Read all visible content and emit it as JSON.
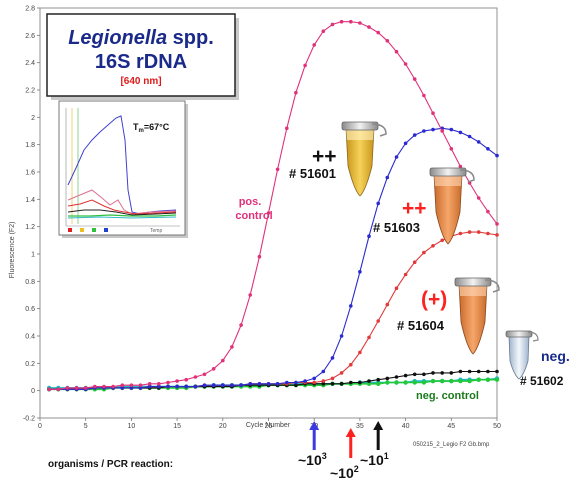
{
  "chart_data": {
    "type": "line",
    "xlabel": "Cycle Number",
    "ylabel": "Fluorescence (F2)",
    "xlim": [
      0,
      50
    ],
    "ylim": [
      -0.2,
      2.8
    ],
    "x_ticks": [
      0,
      5,
      10,
      15,
      20,
      25,
      30,
      35,
      40,
      45,
      50
    ],
    "y_ticks": [
      -0.2,
      0,
      0.2,
      0.4,
      0.6,
      0.8,
      1,
      1.2,
      1.4,
      1.6,
      1.8,
      2,
      2.2,
      2.4,
      2.6,
      2.8
    ],
    "x_tick_labels": [
      "0",
      "5",
      "10",
      "15",
      "20",
      "25",
      "30",
      "35",
      "40",
      "45",
      "50"
    ],
    "y_tick_labels": [
      "-0.2",
      "0",
      "0.2",
      "0.4",
      "0.6",
      "0.8",
      "1",
      "1.2",
      "1.4",
      "1.6",
      "1.8",
      "2",
      "2.2",
      "2.4",
      "2.6",
      "2.8"
    ],
    "grid": false,
    "series": [
      {
        "name": "pos. control",
        "color": "#e0317a",
        "x": [
          1,
          2,
          3,
          4,
          5,
          6,
          7,
          8,
          9,
          10,
          11,
          12,
          13,
          14,
          15,
          16,
          17,
          18,
          19,
          20,
          21,
          22,
          23,
          24,
          25,
          26,
          27,
          28,
          29,
          30,
          31,
          32,
          33,
          34,
          35,
          36,
          37,
          38,
          39,
          40,
          41,
          42,
          43,
          44,
          45,
          46,
          47,
          48,
          49,
          50
        ],
        "y": [
          0.01,
          0.01,
          0.02,
          0.02,
          0.02,
          0.03,
          0.03,
          0.03,
          0.04,
          0.04,
          0.04,
          0.05,
          0.05,
          0.06,
          0.07,
          0.08,
          0.1,
          0.12,
          0.16,
          0.22,
          0.32,
          0.48,
          0.7,
          0.98,
          1.3,
          1.62,
          1.92,
          2.18,
          2.38,
          2.53,
          2.63,
          2.68,
          2.7,
          2.7,
          2.69,
          2.66,
          2.62,
          2.56,
          2.48,
          2.39,
          2.28,
          2.16,
          2.03,
          1.9,
          1.77,
          1.64,
          1.52,
          1.41,
          1.31,
          1.22
        ]
      },
      {
        "name": "# 51601",
        "color": "#2a2ad0",
        "x": [
          1,
          2,
          3,
          4,
          5,
          6,
          7,
          8,
          9,
          10,
          11,
          12,
          13,
          14,
          15,
          16,
          17,
          18,
          19,
          20,
          21,
          22,
          23,
          24,
          25,
          26,
          27,
          28,
          29,
          30,
          31,
          32,
          33,
          34,
          35,
          36,
          37,
          38,
          39,
          40,
          41,
          42,
          43,
          44,
          45,
          46,
          47,
          48,
          49,
          50
        ],
        "y": [
          0.01,
          0.01,
          0.01,
          0.01,
          0.01,
          0.02,
          0.02,
          0.02,
          0.02,
          0.02,
          0.02,
          0.03,
          0.03,
          0.03,
          0.03,
          0.03,
          0.03,
          0.04,
          0.04,
          0.04,
          0.04,
          0.04,
          0.05,
          0.05,
          0.05,
          0.05,
          0.06,
          0.06,
          0.07,
          0.09,
          0.14,
          0.24,
          0.4,
          0.62,
          0.87,
          1.13,
          1.37,
          1.56,
          1.71,
          1.81,
          1.87,
          1.9,
          1.91,
          1.92,
          1.91,
          1.89,
          1.86,
          1.82,
          1.77,
          1.72
        ]
      },
      {
        "name": "# 51603",
        "color": "#e03a3a",
        "x": [
          1,
          2,
          3,
          4,
          5,
          6,
          7,
          8,
          9,
          10,
          11,
          12,
          13,
          14,
          15,
          16,
          17,
          18,
          19,
          20,
          21,
          22,
          23,
          24,
          25,
          26,
          27,
          28,
          29,
          30,
          31,
          32,
          33,
          34,
          35,
          36,
          37,
          38,
          39,
          40,
          41,
          42,
          43,
          44,
          45,
          46,
          47,
          48,
          49,
          50
        ],
        "y": [
          0.01,
          0.01,
          0.01,
          0.01,
          0.01,
          0.02,
          0.02,
          0.02,
          0.02,
          0.02,
          0.02,
          0.03,
          0.03,
          0.03,
          0.03,
          0.03,
          0.03,
          0.04,
          0.04,
          0.04,
          0.04,
          0.04,
          0.05,
          0.05,
          0.05,
          0.05,
          0.05,
          0.06,
          0.06,
          0.06,
          0.07,
          0.09,
          0.13,
          0.19,
          0.28,
          0.39,
          0.51,
          0.63,
          0.75,
          0.85,
          0.94,
          1.01,
          1.06,
          1.1,
          1.13,
          1.15,
          1.16,
          1.16,
          1.15,
          1.14
        ]
      },
      {
        "name": "# 51604",
        "color": "#111111",
        "x": [
          1,
          2,
          3,
          4,
          5,
          6,
          7,
          8,
          9,
          10,
          11,
          12,
          13,
          14,
          15,
          16,
          17,
          18,
          19,
          20,
          21,
          22,
          23,
          24,
          25,
          26,
          27,
          28,
          29,
          30,
          31,
          32,
          33,
          34,
          35,
          36,
          37,
          38,
          39,
          40,
          41,
          42,
          43,
          44,
          45,
          46,
          47,
          48,
          49,
          50
        ],
        "y": [
          0.01,
          0.01,
          0.01,
          0.01,
          0.01,
          0.02,
          0.02,
          0.02,
          0.02,
          0.02,
          0.02,
          0.02,
          0.02,
          0.03,
          0.03,
          0.03,
          0.03,
          0.03,
          0.03,
          0.03,
          0.03,
          0.04,
          0.04,
          0.04,
          0.04,
          0.04,
          0.04,
          0.04,
          0.05,
          0.05,
          0.05,
          0.05,
          0.05,
          0.06,
          0.06,
          0.07,
          0.08,
          0.09,
          0.1,
          0.11,
          0.12,
          0.12,
          0.13,
          0.13,
          0.13,
          0.14,
          0.14,
          0.14,
          0.14,
          0.14
        ]
      },
      {
        "name": "neg. control",
        "color": "#22c93a",
        "x": [
          1,
          2,
          3,
          4,
          5,
          6,
          7,
          8,
          9,
          10,
          11,
          12,
          13,
          14,
          15,
          16,
          17,
          18,
          19,
          20,
          21,
          22,
          23,
          24,
          25,
          26,
          27,
          28,
          29,
          30,
          31,
          32,
          33,
          34,
          35,
          36,
          37,
          38,
          39,
          40,
          41,
          42,
          43,
          44,
          45,
          46,
          47,
          48,
          49,
          50
        ],
        "y": [
          0.01,
          0.01,
          0.01,
          0.01,
          0.01,
          0.01,
          0.01,
          0.02,
          0.02,
          0.02,
          0.02,
          0.02,
          0.02,
          0.02,
          0.02,
          0.02,
          0.03,
          0.03,
          0.03,
          0.03,
          0.03,
          0.03,
          0.03,
          0.03,
          0.04,
          0.04,
          0.04,
          0.04,
          0.04,
          0.04,
          0.04,
          0.05,
          0.05,
          0.05,
          0.05,
          0.05,
          0.05,
          0.06,
          0.06,
          0.06,
          0.06,
          0.06,
          0.07,
          0.07,
          0.07,
          0.07,
          0.07,
          0.08,
          0.08,
          0.08
        ]
      },
      {
        "name": "neg. control (2)",
        "color": "#20b8c8",
        "x": [
          1,
          2,
          3,
          4,
          5,
          6,
          7,
          8,
          9,
          10,
          11,
          12,
          13,
          14,
          15,
          16,
          17,
          18,
          19,
          20,
          21,
          22,
          23,
          24,
          25,
          26,
          27,
          28,
          29,
          30,
          31,
          32,
          33,
          34,
          35,
          36,
          37,
          38,
          39,
          40,
          41,
          42,
          43,
          44,
          45,
          46,
          47,
          48,
          49,
          50
        ],
        "y": [
          0.02,
          0.02,
          0.02,
          0.02,
          0.02,
          0.02,
          0.02,
          0.02,
          0.03,
          0.03,
          0.03,
          0.03,
          0.03,
          0.03,
          0.03,
          0.03,
          0.03,
          0.03,
          0.04,
          0.04,
          0.04,
          0.04,
          0.04,
          0.04,
          0.04,
          0.04,
          0.04,
          0.05,
          0.05,
          0.05,
          0.05,
          0.05,
          0.05,
          0.05,
          0.06,
          0.06,
          0.06,
          0.06,
          0.06,
          0.06,
          0.07,
          0.07,
          0.07,
          0.07,
          0.07,
          0.08,
          0.08,
          0.08,
          0.08,
          0.09
        ]
      }
    ]
  },
  "title_box": {
    "genus": "Legionella",
    "spp": " spp.",
    "line2": "16S rDNA",
    "line3": "[640 nm]"
  },
  "inset": {
    "tm_label": "T",
    "tm_sub": "m",
    "tm_value": "=67°C",
    "x_label": "Temp"
  },
  "labels": {
    "pos_control": [
      "pos.",
      "control"
    ],
    "neg_control": "neg. control",
    "s51601_mark": "++",
    "s51601_id": "# 51601",
    "s51603_mark": "++",
    "s51603_id": "# 51603",
    "s51604_mark": "(+)",
    "s51604_id": "# 51604",
    "neg_side": "neg.",
    "s51602_id": "# 51602",
    "file_name": "050215_2_Legio F2 Gb.bmp",
    "organisms": "organisms / PCR reaction:",
    "exp_blue": {
      "base": "~10",
      "exp": "3"
    },
    "exp_red": {
      "base": "~10",
      "exp": "2"
    },
    "exp_black": {
      "base": "~10",
      "exp": "1"
    }
  },
  "arrows": {
    "blue_cycle": 30,
    "red_cycle": 34,
    "black_cycle": 37,
    "blue": "#3a3ae0",
    "red": "#ff2020",
    "black": "#111111"
  },
  "colors": {
    "tube_yellow": "#e8b830",
    "tube_orange": "#e88848",
    "tube_clear": "#d8e4f0",
    "magenta": "#e0317a",
    "navy": "#1a2a8a",
    "dark_green": "#1a7a1a"
  }
}
